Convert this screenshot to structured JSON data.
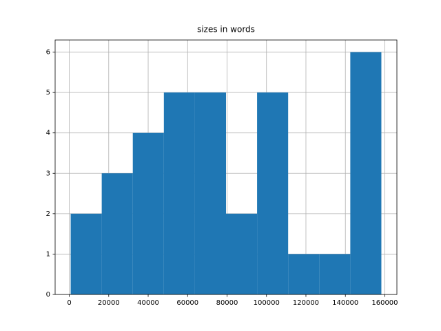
{
  "chart_data": {
    "type": "histogram",
    "title": "sizes in words",
    "bins": [
      699,
      16454,
      32210,
      47965,
      63720,
      79476,
      95231,
      110987,
      126742,
      142498,
      158253
    ],
    "counts": [
      2,
      3,
      4,
      5,
      5,
      2,
      5,
      1,
      1,
      6
    ],
    "color": "#1f77b4",
    "xlim": [
      -7179,
      166131
    ],
    "xticks": [
      0,
      20000,
      40000,
      60000,
      80000,
      100000,
      120000,
      140000,
      160000
    ],
    "ylim": [
      0,
      6.3
    ],
    "yticks": [
      0,
      1,
      2,
      3,
      4,
      5,
      6
    ],
    "grid": true
  }
}
